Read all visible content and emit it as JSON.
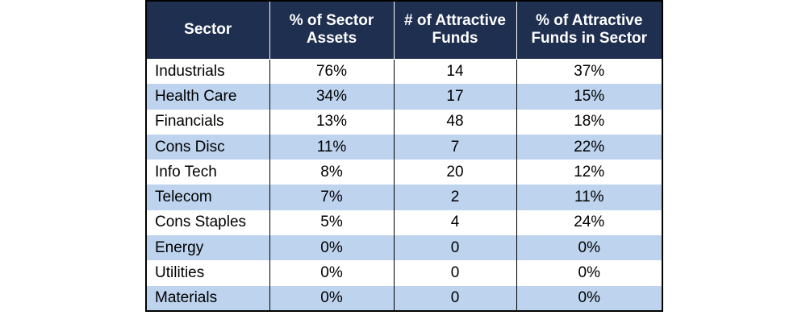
{
  "table": {
    "headers": {
      "sector": "Sector",
      "pct_assets": "% of Sector Assets",
      "num_funds": "# of Attractive Funds",
      "pct_funds": "% of Attractive Funds in Sector"
    },
    "rows": [
      {
        "sector": "Industrials",
        "pct_assets": "76%",
        "num_funds": "14",
        "pct_funds": "37%"
      },
      {
        "sector": "Health Care",
        "pct_assets": "34%",
        "num_funds": "17",
        "pct_funds": "15%"
      },
      {
        "sector": "Financials",
        "pct_assets": "13%",
        "num_funds": "48",
        "pct_funds": "18%"
      },
      {
        "sector": "Cons Disc",
        "pct_assets": "11%",
        "num_funds": "7",
        "pct_funds": "22%"
      },
      {
        "sector": "Info Tech",
        "pct_assets": "8%",
        "num_funds": "20",
        "pct_funds": "12%"
      },
      {
        "sector": "Telecom",
        "pct_assets": "7%",
        "num_funds": "2",
        "pct_funds": "11%"
      },
      {
        "sector": "Cons Staples",
        "pct_assets": "5%",
        "num_funds": "4",
        "pct_funds": "24%"
      },
      {
        "sector": "Energy",
        "pct_assets": "0%",
        "num_funds": "0",
        "pct_funds": "0%"
      },
      {
        "sector": "Utilities",
        "pct_assets": "0%",
        "num_funds": "0",
        "pct_funds": "0%"
      },
      {
        "sector": "Materials",
        "pct_assets": "0%",
        "num_funds": "0",
        "pct_funds": "0%"
      }
    ]
  },
  "colors": {
    "header_bg": "#1f2f50",
    "header_text": "#ffffff",
    "stripe": "#bdd3ee",
    "row_bg": "#ffffff"
  }
}
